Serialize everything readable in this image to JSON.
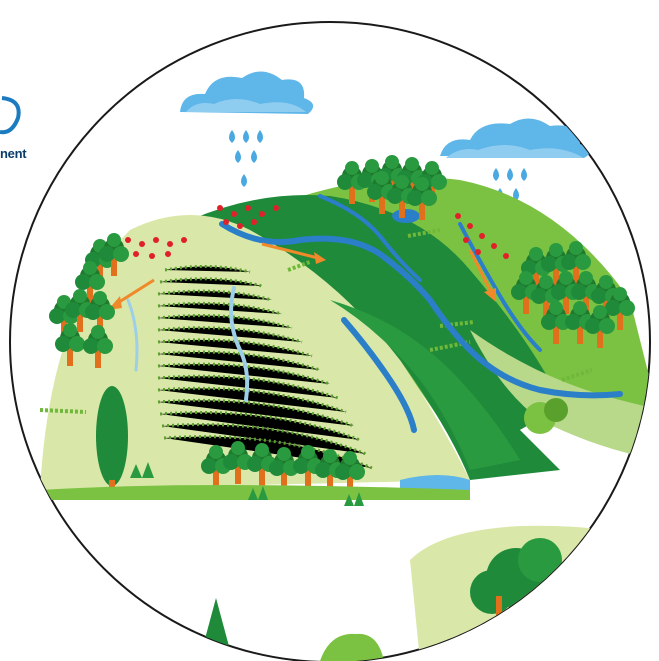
{
  "logo": {
    "partial_text": "nent",
    "color": "#1a7bc0"
  },
  "colors": {
    "sky_cloud": "#5fb6e8",
    "rain": "#4aa9e0",
    "hill_light": "#d9e8a8",
    "hill_mid": "#7cc242",
    "hill_dark": "#1f8a3a",
    "river": "#2a7fc8",
    "tree_trunk": "#e0701c",
    "runoff_arrow": "#f0892a",
    "pollutant_dot": "#e0202a",
    "circle_outline": "#1a1a1a"
  },
  "icons": [
    "cloud-icon",
    "rain-drops-icon",
    "tree-icon",
    "river-icon",
    "arrow-icon",
    "logo-icon"
  ]
}
